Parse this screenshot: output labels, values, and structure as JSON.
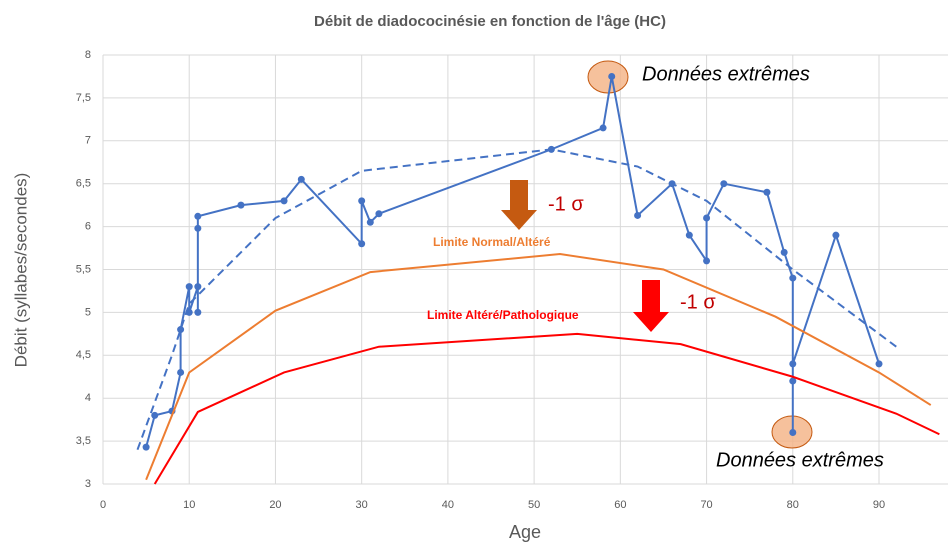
{
  "chart_data": {
    "type": "line",
    "title": "Débit de diadococinésie en fonction de l'âge (HC)",
    "xlabel": "Age",
    "ylabel": "Débit (syllabes/secondes)",
    "xlim": [
      0,
      98
    ],
    "xticks": [
      0,
      10,
      20,
      30,
      40,
      50,
      60,
      70,
      80,
      90
    ],
    "ylim": [
      3,
      8
    ],
    "yticks": [
      3,
      {
        "value": 3.5,
        "label": "3,5"
      },
      4,
      {
        "value": 4.5,
        "label": "4,5"
      },
      5,
      {
        "value": 5.5,
        "label": "5,5"
      },
      6,
      {
        "value": 6.5,
        "label": "6,5"
      },
      7,
      {
        "value": 7.5,
        "label": "7,5"
      },
      8
    ],
    "grid": true,
    "series": [
      {
        "color": "#4472c4",
        "style": "solid",
        "markers": true,
        "x": [
          5,
          6,
          8,
          9,
          9,
          10,
          10,
          11,
          11,
          11,
          11,
          16,
          21,
          23,
          30,
          30,
          31,
          32,
          52,
          58,
          59,
          62,
          66,
          68,
          70,
          70,
          72,
          77,
          79,
          80,
          80,
          80,
          80,
          85,
          90
        ],
        "values": [
          3.43,
          3.8,
          3.85,
          4.3,
          4.8,
          5.3,
          5.0,
          5.3,
          5.0,
          5.98,
          6.12,
          6.25,
          6.3,
          6.55,
          5.8,
          6.3,
          6.05,
          6.15,
          6.9,
          7.15,
          7.75,
          6.13,
          6.5,
          5.9,
          5.6,
          6.1,
          6.5,
          6.4,
          5.7,
          5.4,
          3.6,
          4.2,
          4.4,
          5.9,
          4.4
        ]
      },
      {
        "color": "#4472c4",
        "style": "dashed",
        "markers": false,
        "x": [
          4,
          8,
          10,
          20,
          30,
          52,
          62,
          70,
          80,
          92
        ],
        "values": [
          3.4,
          4.5,
          5.1,
          6.1,
          6.65,
          6.9,
          6.7,
          6.3,
          5.5,
          4.6
        ]
      },
      {
        "color": "#ed7d31",
        "style": "solid",
        "markers": false,
        "x": [
          5,
          10,
          20,
          31,
          53,
          65,
          78,
          90,
          96
        ],
        "values": [
          3.05,
          4.3,
          5.02,
          5.47,
          5.68,
          5.5,
          4.95,
          4.3,
          3.92
        ]
      },
      {
        "color": "#ff0000",
        "style": "solid",
        "markers": false,
        "x": [
          6,
          11,
          21,
          32,
          55,
          67,
          80,
          92,
          97
        ],
        "values": [
          3.0,
          3.84,
          4.3,
          4.6,
          4.75,
          4.63,
          4.25,
          3.82,
          3.58
        ]
      }
    ],
    "annotations": [
      "Données extrêmes",
      "Données extrêmes",
      "-1 σ",
      "-1 σ",
      "Limite Normal/Altéré",
      "Limite Altéré/Pathologique"
    ]
  }
}
